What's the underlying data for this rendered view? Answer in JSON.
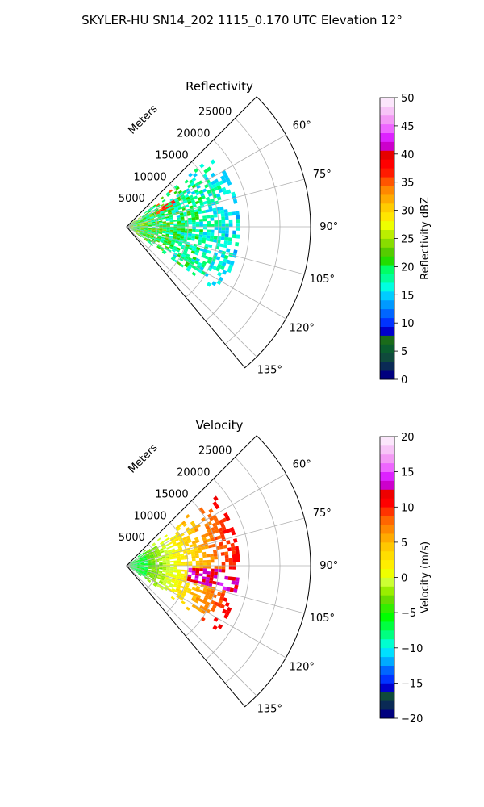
{
  "suptitle": "SKYLER-HU  SN14_202  1115_0.170 UTC Elevation 12°",
  "colors": {
    "reflectivity_colormap": [
      "#00007f",
      "#0a2a55",
      "#0f4a3c",
      "#0a5d2e",
      "#1a6b1a",
      "#0000cc",
      "#0033ff",
      "#0066ff",
      "#0099ff",
      "#00ccff",
      "#00ffe0",
      "#00ff99",
      "#00ff66",
      "#22dd00",
      "#55cc00",
      "#88dd00",
      "#bbee00",
      "#eeff00",
      "#ffe600",
      "#ffcc00",
      "#ffaa00",
      "#ff8800",
      "#ff5500",
      "#ff1a00",
      "#ff0000",
      "#e60000",
      "#cc00cc",
      "#dd22ff",
      "#ee66ff",
      "#f399f5",
      "#f7c4f7",
      "#fbe6fb"
    ],
    "velocity_colormap": [
      "#00007f",
      "#0a2a55",
      "#0f4a3c",
      "#0000cc",
      "#0033ff",
      "#0066ff",
      "#00aaff",
      "#00e0ff",
      "#00ffd0",
      "#00ff80",
      "#00ff40",
      "#00ff00",
      "#33ee00",
      "#66dd00",
      "#99ee00",
      "#ccff33",
      "#eeff00",
      "#ffee00",
      "#ffdd00",
      "#ffc800",
      "#ffaa00",
      "#ff8800",
      "#ff6600",
      "#ff3300",
      "#ff0000",
      "#ee0000",
      "#cc00cc",
      "#dd22ff",
      "#ee66ff",
      "#f399f5",
      "#f7c4f7",
      "#fbe6fb"
    ]
  },
  "chart_data": [
    {
      "type": "heatmap",
      "title": "Reflectivity",
      "projection": "polar sector",
      "range_label": "Meters",
      "range_ticks": [
        5000,
        10000,
        15000,
        20000,
        25000
      ],
      "range_tick_labels": [
        "5000",
        "10000",
        "15000",
        "20000",
        "25000"
      ],
      "r_max": 30000,
      "azimuth_ticks": [
        60,
        75,
        90,
        105,
        120,
        135
      ],
      "azimuth_tick_labels": [
        "60°",
        "75°",
        "90°",
        "105°",
        "120°",
        "135°"
      ],
      "azimuth_range": [
        45,
        140
      ],
      "grid": true,
      "colorbar": {
        "label": "Reflectivity dBZ",
        "range": [
          0,
          50
        ],
        "ticks": [
          0,
          5,
          10,
          15,
          20,
          25,
          30,
          35,
          40,
          45,
          50
        ],
        "tick_labels": [
          "0",
          "5",
          "10",
          "15",
          "20",
          "25",
          "30",
          "35",
          "40",
          "45",
          "50"
        ]
      },
      "echo_region": {
        "azimuth_range": [
          50,
          125
        ],
        "range_max": 18000,
        "typical_values": [
          10,
          30
        ],
        "max_value": 38
      }
    },
    {
      "type": "heatmap",
      "title": "Velocity",
      "projection": "polar sector",
      "range_label": "Meters",
      "range_ticks": [
        5000,
        10000,
        15000,
        20000,
        25000
      ],
      "range_tick_labels": [
        "5000",
        "10000",
        "15000",
        "20000",
        "25000"
      ],
      "r_max": 30000,
      "azimuth_ticks": [
        60,
        75,
        90,
        105,
        120,
        135
      ],
      "azimuth_tick_labels": [
        "60°",
        "75°",
        "90°",
        "105°",
        "120°",
        "135°"
      ],
      "azimuth_range": [
        45,
        140
      ],
      "grid": true,
      "colorbar": {
        "label": "Velocity (m/s)",
        "range": [
          -20,
          20
        ],
        "ticks": [
          -20,
          -15,
          -10,
          -5,
          0,
          5,
          10,
          15,
          20
        ],
        "tick_labels": [
          "−20",
          "−15",
          "−10",
          "−5",
          "0",
          "5",
          "10",
          "15",
          "20"
        ]
      },
      "echo_region": {
        "azimuth_range": [
          50,
          125
        ],
        "range_max": 18000,
        "typical_values": [
          -8,
          12
        ],
        "max_value": 14
      }
    }
  ]
}
